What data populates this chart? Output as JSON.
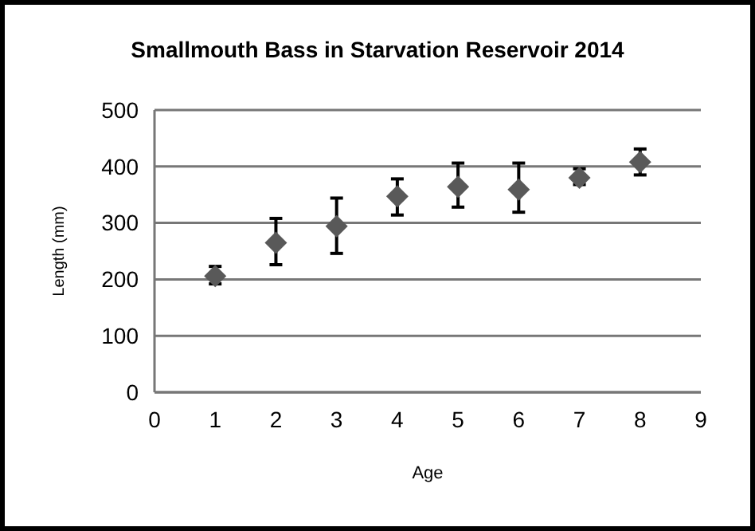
{
  "chart_data": {
    "type": "scatter",
    "title": "Smallmouth Bass in Starvation Reservoir 2014",
    "xlabel": "Age",
    "ylabel": "Length (mm)",
    "x": [
      1,
      2,
      3,
      4,
      5,
      6,
      7,
      8
    ],
    "series": [
      {
        "color": "#595959",
        "values": [
          206,
          265,
          294,
          347,
          364,
          359,
          380,
          408
        ],
        "errors": [
          [
            192,
            223
          ],
          [
            226,
            308
          ],
          [
            246,
            344
          ],
          [
            314,
            378
          ],
          [
            328,
            406
          ],
          [
            319,
            406
          ],
          [
            368,
            396
          ],
          [
            385,
            431
          ]
        ]
      }
    ],
    "xlim": [
      0,
      9
    ],
    "xticks": [
      0,
      1,
      2,
      3,
      4,
      5,
      6,
      7,
      8,
      9
    ],
    "ylim": [
      0,
      500
    ],
    "yticks": [
      0,
      100,
      200,
      300,
      400,
      500
    ],
    "grid": "y",
    "marker": "diamond"
  }
}
